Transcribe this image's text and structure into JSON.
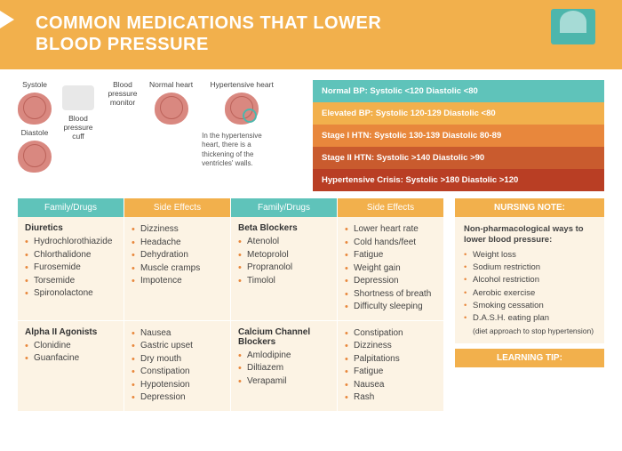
{
  "header": {
    "title_l1": "COMMON MEDICATIONS THAT LOWER",
    "title_l2": "BLOOD PRESSURE",
    "bg_color": "#f2b04c"
  },
  "diagram": {
    "systole": "Systole",
    "diastole": "Diastole",
    "cuff": "Blood pressure cuff",
    "monitor": "Blood pressure monitor",
    "normal": "Normal heart",
    "hypertensive": "Hypertensive heart",
    "caption": "In the hypertensive heart, there is a thickening of the ventricles' walls."
  },
  "stages": [
    {
      "label": "Normal BP: Systolic <120 Diastolic <80",
      "color": "#5fc3ba"
    },
    {
      "label": "Elevated BP: Systolic 120-129 Diastolic <80",
      "color": "#f2b04c"
    },
    {
      "label": "Stage I HTN: Systolic 130-139 Diastolic 80-89",
      "color": "#e8873c"
    },
    {
      "label": "Stage II HTN: Systolic >140 Diastolic >90",
      "color": "#c95b2e"
    },
    {
      "label": "Hypertensive Crisis: Systolic >180 Diastolic >120",
      "color": "#b93e24"
    }
  ],
  "table": {
    "headers": [
      "Family/Drugs",
      "Side Effects",
      "Family/Drugs",
      "Side Effects"
    ],
    "rows": [
      [
        {
          "family": "Diuretics",
          "items": [
            "Hydrochlorothiazide",
            "Chlorthalidone",
            "Furosemide",
            "Torsemide",
            "Spironolactone"
          ]
        },
        {
          "family": "",
          "items": [
            "Dizziness",
            "Headache",
            "Dehydration",
            "Muscle cramps",
            "Impotence"
          ]
        },
        {
          "family": "Beta Blockers",
          "items": [
            "Atenolol",
            "Metoprolol",
            "Propranolol",
            "Timolol"
          ]
        },
        {
          "family": "",
          "items": [
            "Lower heart rate",
            "Cold hands/feet",
            "Fatigue",
            "Weight gain",
            "Depression",
            "Shortness of breath",
            "Difficulty sleeping"
          ]
        }
      ],
      [
        {
          "family": "Alpha II Agonists",
          "items": [
            "Clonidine",
            "Guanfacine"
          ]
        },
        {
          "family": "",
          "items": [
            "Nausea",
            "Gastric upset",
            "Dry mouth",
            "Constipation",
            "Hypotension",
            "Depression"
          ]
        },
        {
          "family": "Calcium Channel Blockers",
          "items": [
            "Amlodipine",
            "Diltiazem",
            "Verapamil"
          ]
        },
        {
          "family": "",
          "items": [
            "Constipation",
            "Dizziness",
            "Palpitations",
            "Fatigue",
            "Nausea",
            "Rash"
          ]
        }
      ]
    ]
  },
  "nursing": {
    "title": "NURSING NOTE:",
    "lead": "Non-pharmacological ways to lower blood pressure:",
    "items": [
      "Weight loss",
      "Sodium restriction",
      "Alcohol restriction",
      "Aerobic exercise",
      "Smoking cessation",
      "D.A.S.H. eating plan"
    ],
    "sub": "(diet approach to stop hypertension)"
  },
  "learning": {
    "title": "LEARNING TIP:"
  }
}
